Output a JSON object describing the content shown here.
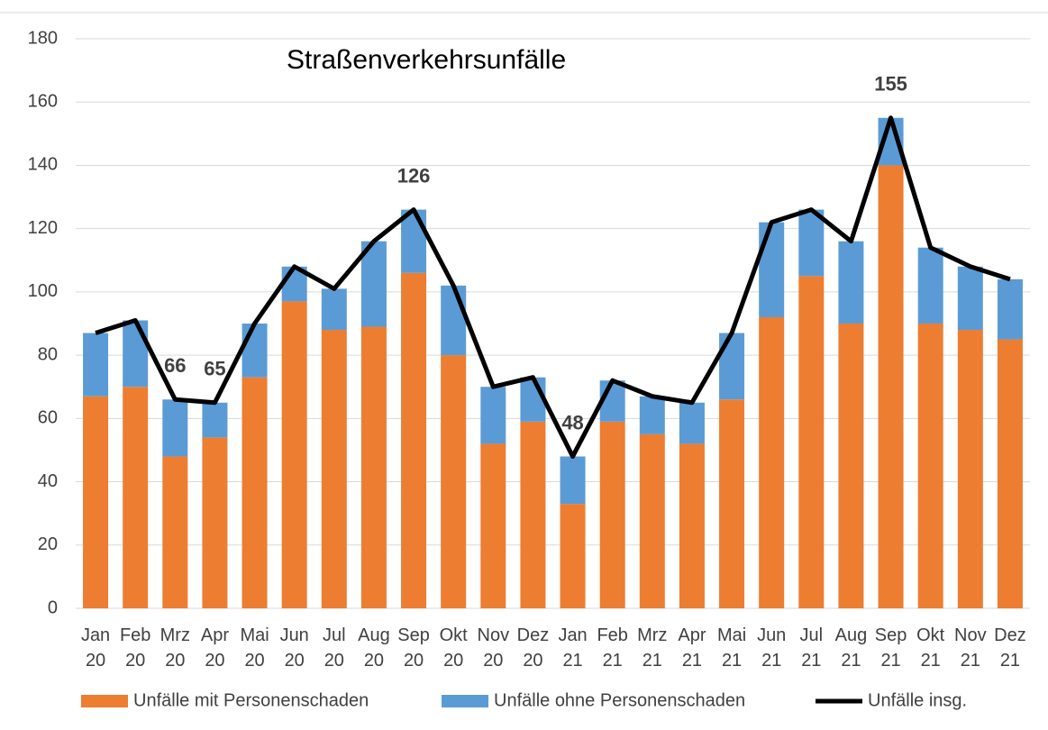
{
  "chart_data": {
    "type": "bar-line",
    "title": "Straßenverkehrsunfälle",
    "categories": [
      "Jan 20",
      "Feb 20",
      "Mrz 20",
      "Apr 20",
      "Mai 20",
      "Jun 20",
      "Jul 20",
      "Aug 20",
      "Sep 20",
      "Okt 20",
      "Nov 20",
      "Dez 20",
      "Jan 21",
      "Feb 21",
      "Mrz 21",
      "Apr 21",
      "Mai 21",
      "Jun 21",
      "Jul 21",
      "Aug 21",
      "Sep 21",
      "Okt 21",
      "Nov 21",
      "Dez 21"
    ],
    "series": [
      {
        "name": "Unfälle mit Personenschaden",
        "color": "#ed7d31",
        "stacked": true,
        "values": [
          67,
          70,
          48,
          54,
          73,
          97,
          88,
          89,
          106,
          80,
          52,
          59,
          33,
          59,
          55,
          52,
          66,
          92,
          105,
          90,
          140,
          90,
          88,
          85
        ]
      },
      {
        "name": "Unfälle ohne Personenschaden",
        "color": "#5b9bd5",
        "stacked": true,
        "values": [
          20,
          21,
          18,
          11,
          17,
          11,
          13,
          27,
          20,
          22,
          18,
          14,
          15,
          13,
          12,
          13,
          21,
          30,
          21,
          26,
          15,
          24,
          20,
          19
        ]
      },
      {
        "name": "Unfälle insg.",
        "color": "#000000",
        "line": true,
        "values": [
          87,
          91,
          66,
          65,
          90,
          108,
          101,
          116,
          126,
          102,
          70,
          73,
          48,
          72,
          67,
          65,
          87,
          122,
          126,
          116,
          155,
          114,
          108,
          104
        ],
        "value_labels": [
          null,
          null,
          "66",
          "65",
          null,
          null,
          null,
          null,
          "126",
          null,
          null,
          null,
          "48",
          null,
          null,
          null,
          null,
          null,
          null,
          null,
          "155",
          null,
          null,
          null
        ]
      }
    ],
    "ylim": [
      0,
      180
    ],
    "yticks": [
      0,
      20,
      40,
      60,
      80,
      100,
      120,
      140,
      160,
      180
    ],
    "grid": true,
    "legend": "bottom"
  }
}
